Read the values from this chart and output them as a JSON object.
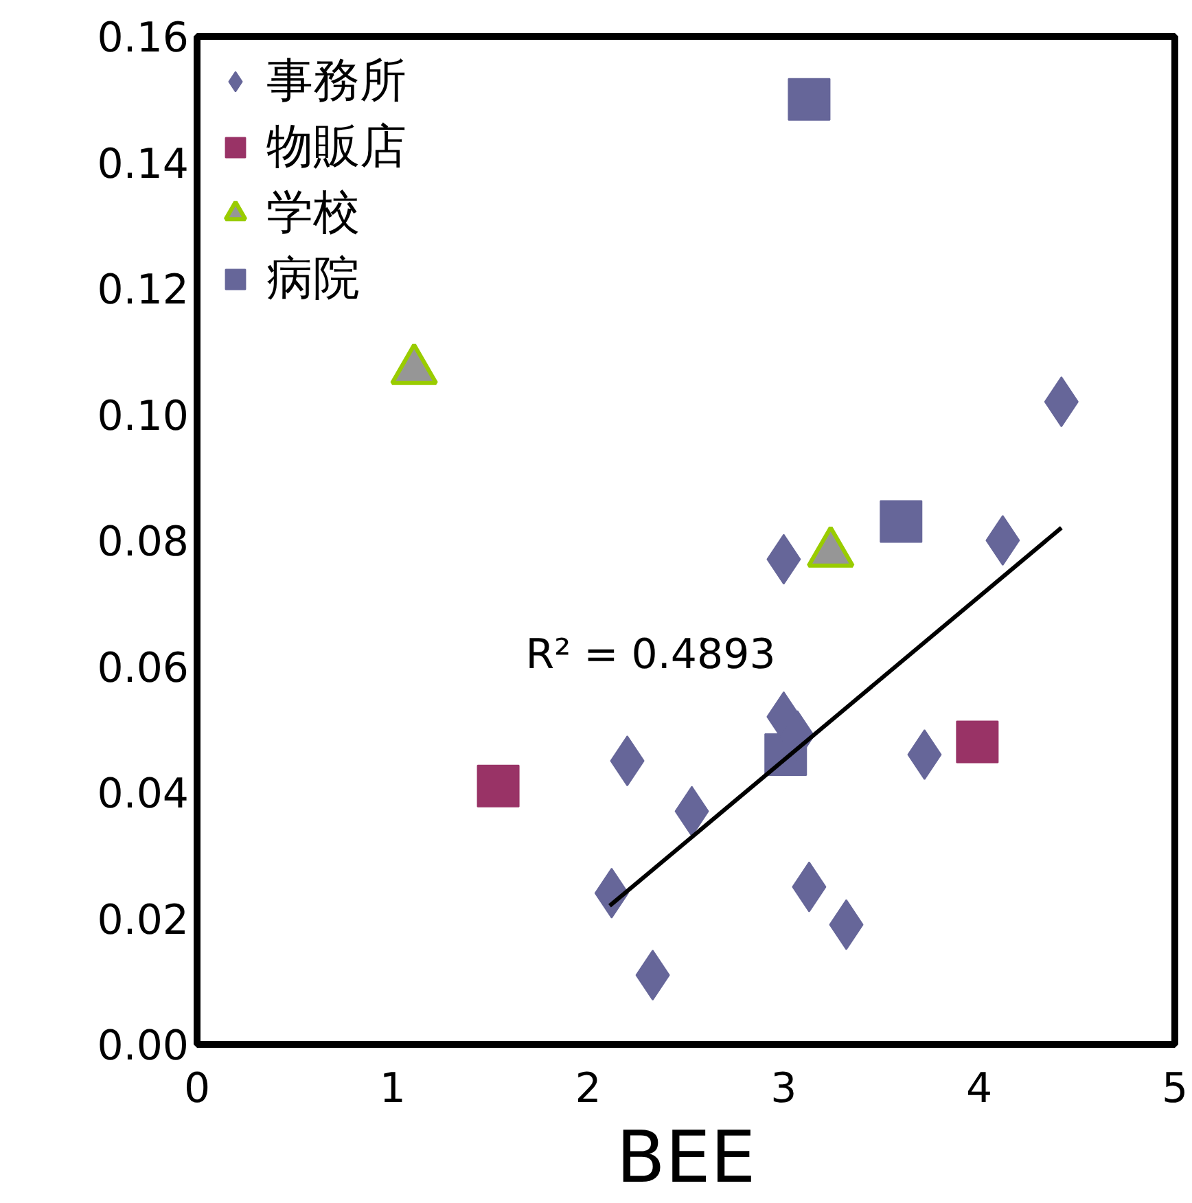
{
  "chart_data": {
    "type": "scatter",
    "xlabel": "BEE",
    "xlim": [
      0,
      5
    ],
    "xticks": [
      0,
      1,
      2,
      3,
      4,
      5
    ],
    "ylim": [
      0,
      0.16
    ],
    "yticks": [
      {
        "value": 0,
        "label": "0.00"
      },
      {
        "value": 0.02,
        "label": "0.02"
      },
      {
        "value": 0.04,
        "label": "0.04"
      },
      {
        "value": 0.06,
        "label": "0.06"
      },
      {
        "value": 0.08,
        "label": "0.08"
      },
      {
        "value": 0.1,
        "label": "0.10"
      },
      {
        "value": 0.12,
        "label": "0.12"
      },
      {
        "value": 0.14,
        "label": "0.14"
      },
      {
        "value": 0.16,
        "label": "0.16"
      }
    ],
    "grid": false,
    "legend": "top left",
    "annotations": [
      "R² = 0.4893"
    ],
    "series": [
      {
        "name": "事務所",
        "color": "#666699",
        "marker": "diamond",
        "x": [
          2.2,
          2.53,
          2.12,
          2.33,
          3.0,
          3.0,
          3.07,
          3.13,
          3.32,
          3.72,
          4.12,
          4.42
        ],
        "values": [
          0.045,
          0.037,
          0.024,
          0.011,
          0.077,
          0.052,
          0.049,
          0.025,
          0.019,
          0.046,
          0.08,
          0.102
        ]
      },
      {
        "name": "物販店",
        "color": "#993366",
        "marker": "square",
        "x": [
          1.54,
          3.99
        ],
        "values": [
          0.041,
          0.048
        ]
      },
      {
        "name": "学校",
        "color": "#969696",
        "marker": "triangle",
        "x": [
          1.11,
          3.24
        ],
        "values": [
          0.107,
          0.078
        ]
      },
      {
        "name": "病院",
        "color": "#666699",
        "marker": "square",
        "x": [
          3.13,
          3.6,
          3.01
        ],
        "values": [
          0.15,
          0.083,
          0.046
        ]
      },
      {
        "type": "line",
        "color": "#000000",
        "x": [
          2.11,
          4.42
        ],
        "values": [
          0.022,
          0.082
        ]
      }
    ]
  }
}
